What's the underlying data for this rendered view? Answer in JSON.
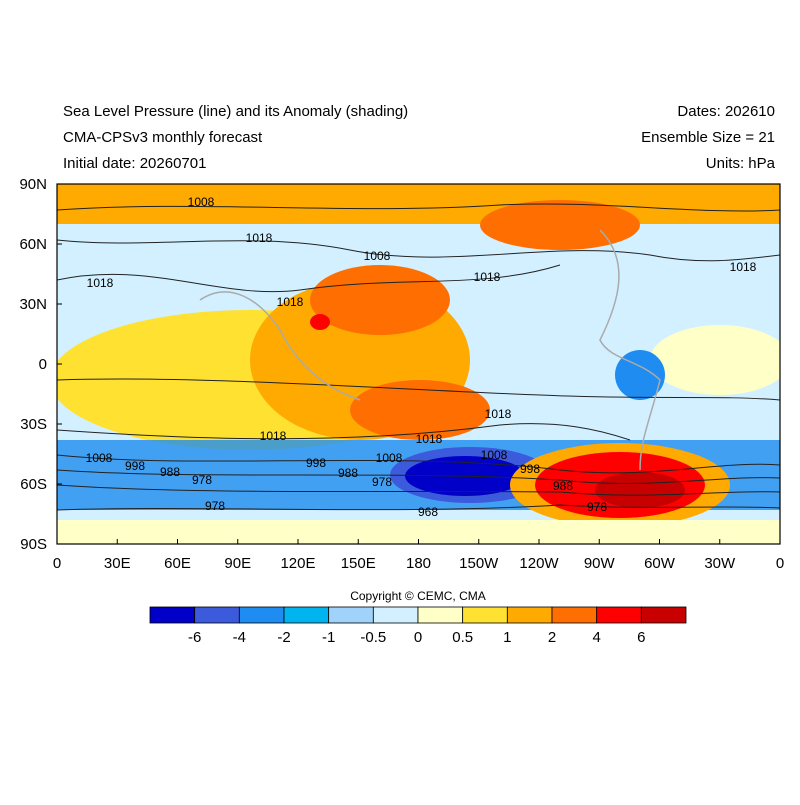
{
  "header": {
    "left": [
      "Sea Level Pressure (line) and its Anomaly (shading)",
      "CMA-CPSv3 monthly forecast",
      "Initial date: 20260701"
    ],
    "right": [
      "Dates: 202610",
      "Ensemble Size = 21",
      "Units: hPa"
    ]
  },
  "map": {
    "x_labels": [
      "0",
      "30E",
      "60E",
      "90E",
      "120E",
      "150E",
      "180",
      "150W",
      "120W",
      "90W",
      "60W",
      "30W",
      "0"
    ],
    "y_labels": [
      "90N",
      "60N",
      "30N",
      "0",
      "30S",
      "60S",
      "90S"
    ],
    "contour_labels": [
      "1008",
      "1018",
      "1018",
      "1018",
      "1008",
      "1018",
      "1018",
      "1018",
      "1018",
      "1018",
      "1008",
      "998",
      "988",
      "978",
      "998",
      "988",
      "978",
      "1008",
      "1008",
      "998",
      "988",
      "978",
      "978",
      "968"
    ]
  },
  "copyright": "Copyright © CEMC, CMA",
  "colorbar": {
    "colors": [
      "#0000c8",
      "#3c5adc",
      "#1e8cf0",
      "#00b4f0",
      "#a0d2fa",
      "#d2f0ff",
      "#ffffc8",
      "#ffe132",
      "#ffaa00",
      "#ff6e00",
      "#ff0000",
      "#c80000"
    ],
    "labels": [
      "-6",
      "-4",
      "-2",
      "-1",
      "-0.5",
      "0",
      "0.5",
      "1",
      "2",
      "4",
      "6"
    ]
  }
}
